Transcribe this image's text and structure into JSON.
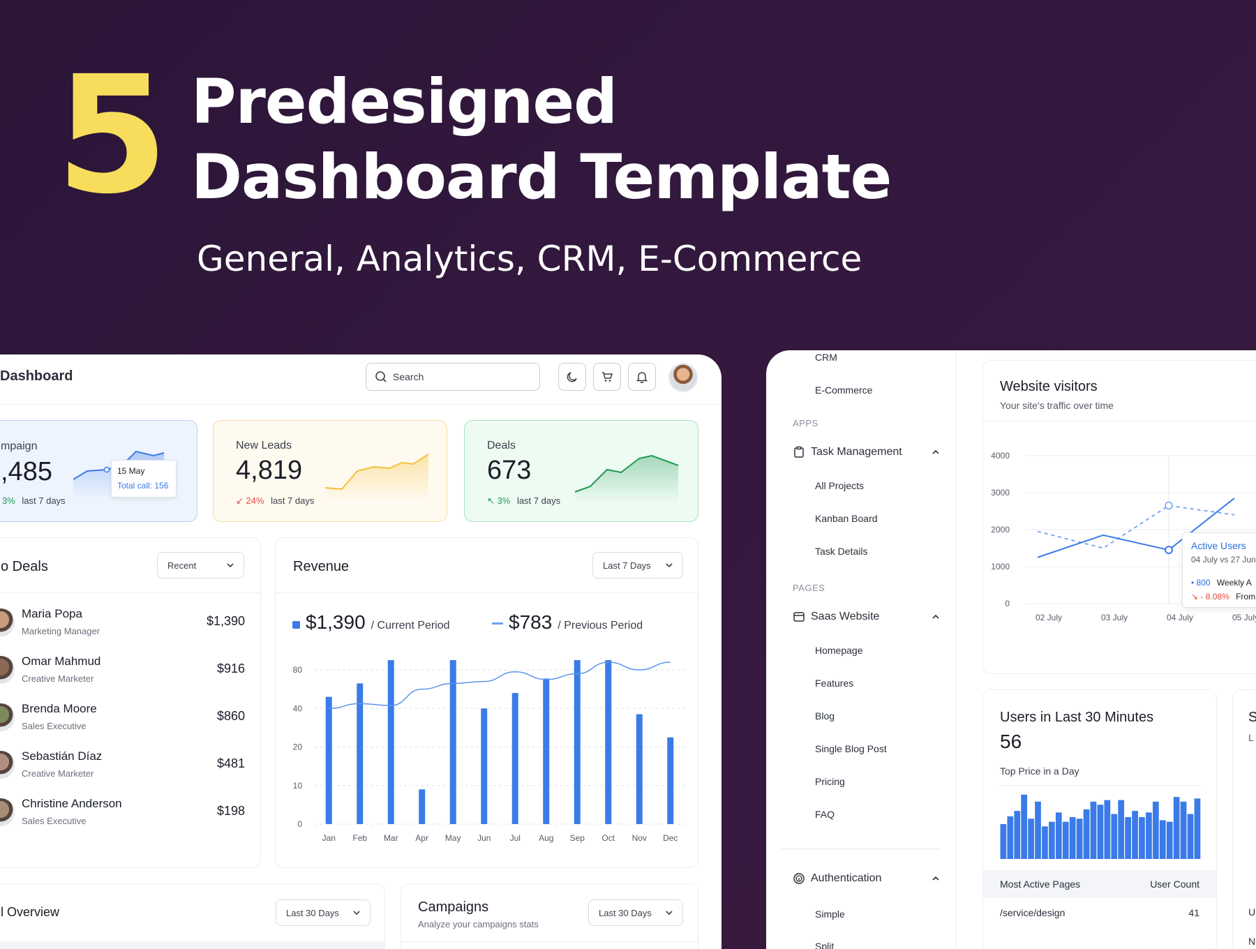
{
  "hero": {
    "number": "5",
    "title_line1": "Predesigned",
    "title_line2": "Dashboard Template",
    "subtitle": "General, Analytics, CRM, E-Commerce"
  },
  "left": {
    "header": {
      "title": "Dashboard",
      "search_placeholder": "Search",
      "icons": [
        "moon-icon",
        "cart-icon",
        "bell-icon"
      ]
    },
    "stats": [
      {
        "label": "mpaign",
        "value": ",485",
        "change": "3%",
        "period": "last 7 days",
        "tooltip_date": "15 May",
        "tooltip_text": "Total call: 156",
        "color": "#3b7be8"
      },
      {
        "label": "New Leads",
        "value": "4,819",
        "change": "24%",
        "period": "last 7 days",
        "color": "#f4bf3a"
      },
      {
        "label": "Deals",
        "value": "673",
        "change": "3%",
        "period": "last 7 days",
        "color": "#1f9a52"
      }
    ],
    "deals": {
      "title": "o Deals",
      "filter": "Recent",
      "rows": [
        {
          "name": "Maria Popa",
          "role": "Marketing Manager",
          "amount": "$1,390"
        },
        {
          "name": "Omar Mahmud",
          "role": "Creative Marketer",
          "amount": "$916"
        },
        {
          "name": "Brenda Moore",
          "role": "Sales Executive",
          "amount": "$860"
        },
        {
          "name": "Sebastián Díaz",
          "role": "Creative Marketer",
          "amount": "$481"
        },
        {
          "name": "Christine Anderson",
          "role": "Sales Executive",
          "amount": "$198"
        }
      ]
    },
    "revenue": {
      "title": "Revenue",
      "filter": "Last 7 Days",
      "current_value": "$1,390",
      "current_label": "/ Current Period",
      "previous_value": "$783",
      "previous_label": "/ Previous Period"
    },
    "overview": {
      "title": "l Overview",
      "filter": "Last 30 Days"
    },
    "campaigns": {
      "title": "Campaigns",
      "subtitle": "Analyze your campaigns stats",
      "filter": "Last 30 Days"
    }
  },
  "right": {
    "sidebar": {
      "top_items": [
        "CRM",
        "E-Commerce"
      ],
      "apps_label": "APPS",
      "task_group": "Task Management",
      "task_items": [
        "All Projects",
        "Kanban Board",
        "Task Details"
      ],
      "pages_label": "PAGES",
      "saas_group": "Saas Website",
      "saas_items": [
        "Homepage",
        "Features",
        "Blog",
        "Single Blog Post",
        "Pricing",
        "FAQ"
      ],
      "auth_group": "Authentication",
      "auth_items": [
        "Simple",
        "Split"
      ]
    },
    "visitors": {
      "title": "Website visitors",
      "subtitle": "Your site's traffic over time",
      "tooltip_title": "Active Users",
      "tooltip_dates": "04 July vs 27 Jun",
      "tooltip_value": "800",
      "tooltip_value_label": "Weekly A",
      "tooltip_change": "- 8.08%",
      "tooltip_change_label": "From"
    },
    "users30": {
      "title": "Users in Last 30 Minutes",
      "count": "56",
      "chart_label": "Top Price in a Day",
      "table_headers": [
        "Most Active Pages",
        "User Count"
      ],
      "rows": [
        {
          "page": "/service/design",
          "count": "41"
        }
      ]
    },
    "partial_card": {
      "title": "S",
      "sub": "L",
      "row_a": "U",
      "row_b": "N"
    }
  },
  "chart_data": [
    {
      "type": "bar",
      "title": "Revenue",
      "categories": [
        "Jan",
        "Feb",
        "Mar",
        "Apr",
        "May",
        "Jun",
        "Jul",
        "Aug",
        "Sep",
        "Oct",
        "Nov",
        "Dec"
      ],
      "y_ticks": [
        "0",
        "10",
        "20",
        "40",
        "80"
      ],
      "series": [
        {
          "name": "Current Period",
          "values": [
            52,
            66,
            87,
            9,
            84,
            40,
            56,
            71,
            84,
            84,
            37,
            25
          ]
        },
        {
          "name": "Previous Period",
          "values": [
            40,
            45,
            43,
            60,
            66,
            68,
            78,
            70,
            76,
            82,
            80,
            82
          ]
        }
      ]
    },
    {
      "type": "line",
      "title": "Website visitors",
      "x": [
        "02 July",
        "03 July",
        "04 July",
        "05 July"
      ],
      "y_ticks": [
        "0",
        "1000",
        "2000",
        "3000",
        "4000"
      ],
      "ylim": [
        0,
        4000
      ],
      "series": [
        {
          "name": "Active Users",
          "values": [
            1250,
            1850,
            1450,
            2850
          ]
        },
        {
          "name": "",
          "values": [
            1950,
            1500,
            2650,
            2400
          ]
        }
      ]
    },
    {
      "type": "bar",
      "title": "Users in Last 30 Minutes",
      "values": [
        45,
        55,
        62,
        83,
        52,
        74,
        42,
        48,
        60,
        48,
        54,
        52,
        64,
        74,
        70,
        76,
        58,
        76,
        54,
        62,
        54,
        60,
        74,
        50,
        48,
        80,
        74,
        58,
        78
      ]
    }
  ]
}
